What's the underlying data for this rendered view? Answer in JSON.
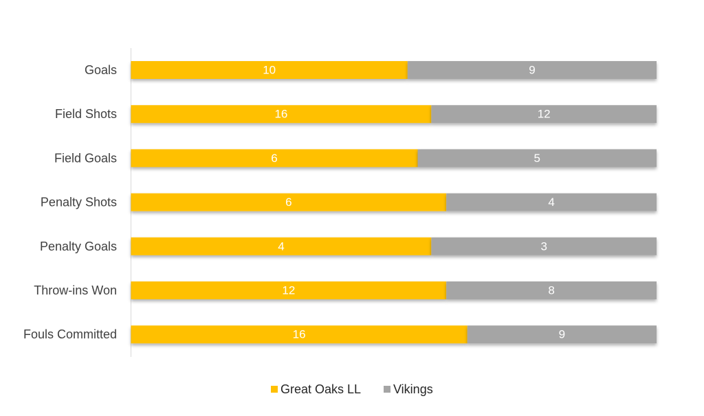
{
  "chart_data": {
    "type": "bar",
    "orientation": "horizontal",
    "stacking": "percent",
    "title": "",
    "xlabel": "",
    "ylabel": "",
    "categories": [
      "Goals",
      "Field Shots",
      "Field Goals",
      "Penalty Shots",
      "Penalty Goals",
      "Throw-ins Won",
      "Fouls Committed"
    ],
    "series": [
      {
        "name": "Great Oaks LL",
        "values": [
          10,
          16,
          6,
          6,
          4,
          12,
          16
        ],
        "color": "#FFC000"
      },
      {
        "name": "Vikings",
        "values": [
          9,
          12,
          5,
          4,
          3,
          8,
          9
        ],
        "color": "#A5A5A5"
      }
    ],
    "xlim": [
      0,
      100
    ],
    "grid": false,
    "legend_position": "bottom",
    "data_labels": true
  }
}
